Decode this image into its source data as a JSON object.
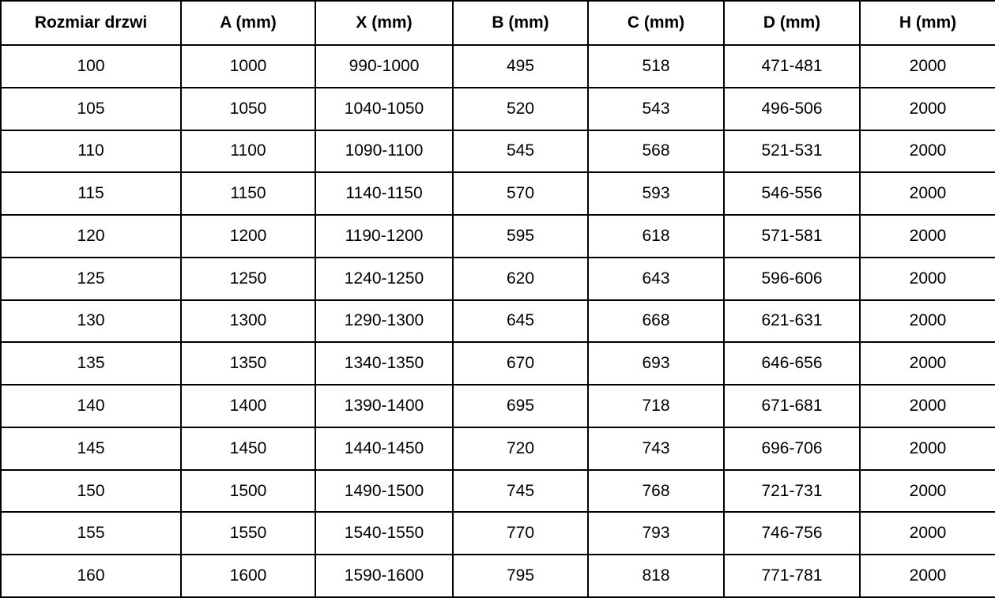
{
  "colors": {
    "border": "#000000",
    "text": "#000000",
    "background": "#ffffff"
  },
  "chart_data": {
    "type": "table",
    "columns": [
      "Rozmiar drzwi",
      "A (mm)",
      "X (mm)",
      "B (mm)",
      "C (mm)",
      "D (mm)",
      "H (mm)"
    ],
    "rows": [
      [
        "100",
        "1000",
        "990-1000",
        "495",
        "518",
        "471-481",
        "2000"
      ],
      [
        "105",
        "1050",
        "1040-1050",
        "520",
        "543",
        "496-506",
        "2000"
      ],
      [
        "110",
        "1100",
        "1090-1100",
        "545",
        "568",
        "521-531",
        "2000"
      ],
      [
        "115",
        "1150",
        "1140-1150",
        "570",
        "593",
        "546-556",
        "2000"
      ],
      [
        "120",
        "1200",
        "1190-1200",
        "595",
        "618",
        "571-581",
        "2000"
      ],
      [
        "125",
        "1250",
        "1240-1250",
        "620",
        "643",
        "596-606",
        "2000"
      ],
      [
        "130",
        "1300",
        "1290-1300",
        "645",
        "668",
        "621-631",
        "2000"
      ],
      [
        "135",
        "1350",
        "1340-1350",
        "670",
        "693",
        "646-656",
        "2000"
      ],
      [
        "140",
        "1400",
        "1390-1400",
        "695",
        "718",
        "671-681",
        "2000"
      ],
      [
        "145",
        "1450",
        "1440-1450",
        "720",
        "743",
        "696-706",
        "2000"
      ],
      [
        "150",
        "1500",
        "1490-1500",
        "745",
        "768",
        "721-731",
        "2000"
      ],
      [
        "155",
        "1550",
        "1540-1550",
        "770",
        "793",
        "746-756",
        "2000"
      ],
      [
        "160",
        "1600",
        "1590-1600",
        "795",
        "818",
        "771-781",
        "2000"
      ]
    ]
  }
}
